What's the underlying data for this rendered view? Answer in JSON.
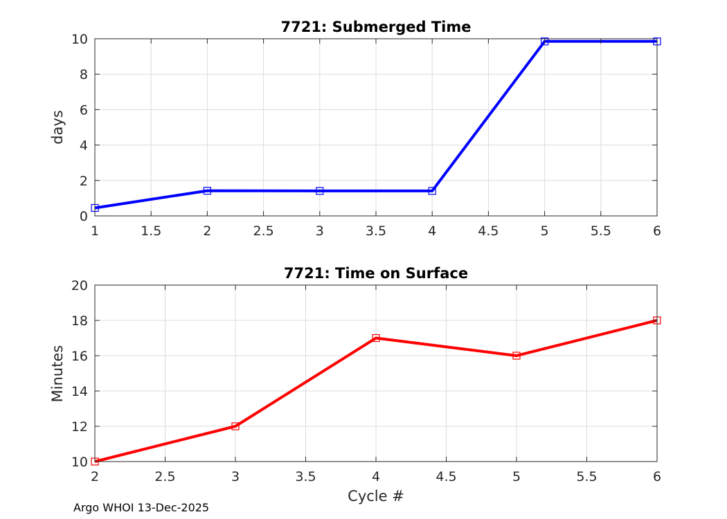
{
  "chart_data": [
    {
      "type": "line",
      "title": "7721: Submerged Time",
      "xlabel": "",
      "ylabel": "days",
      "xlim": [
        1,
        6
      ],
      "ylim": [
        0,
        10
      ],
      "xticks": [
        "1",
        "1.5",
        "2",
        "2.5",
        "3",
        "3.5",
        "4",
        "4.5",
        "5",
        "5.5",
        "6"
      ],
      "yticks": [
        "0",
        "2",
        "4",
        "6",
        "8",
        "10"
      ],
      "grid": true,
      "series": [
        {
          "color": "#0000ff",
          "marker": "square",
          "x": [
            1,
            2,
            3,
            4,
            5,
            6
          ],
          "y": [
            0.45,
            1.42,
            1.41,
            1.41,
            9.85,
            9.85
          ]
        }
      ]
    },
    {
      "type": "line",
      "title": "7721: Time on Surface",
      "xlabel": "Cycle #",
      "ylabel": "Minutes",
      "xlim": [
        2,
        6
      ],
      "ylim": [
        10,
        20
      ],
      "xticks": [
        "2",
        "2.5",
        "3",
        "3.5",
        "4",
        "4.5",
        "5",
        "5.5",
        "6"
      ],
      "yticks": [
        "10",
        "12",
        "14",
        "16",
        "18",
        "20"
      ],
      "grid": true,
      "series": [
        {
          "color": "#ff0000",
          "marker": "square",
          "x": [
            2,
            3,
            4,
            5,
            6
          ],
          "y": [
            10,
            12,
            17,
            16,
            18
          ]
        }
      ]
    }
  ],
  "footer": "Argo WHOI 13-Dec-2025"
}
